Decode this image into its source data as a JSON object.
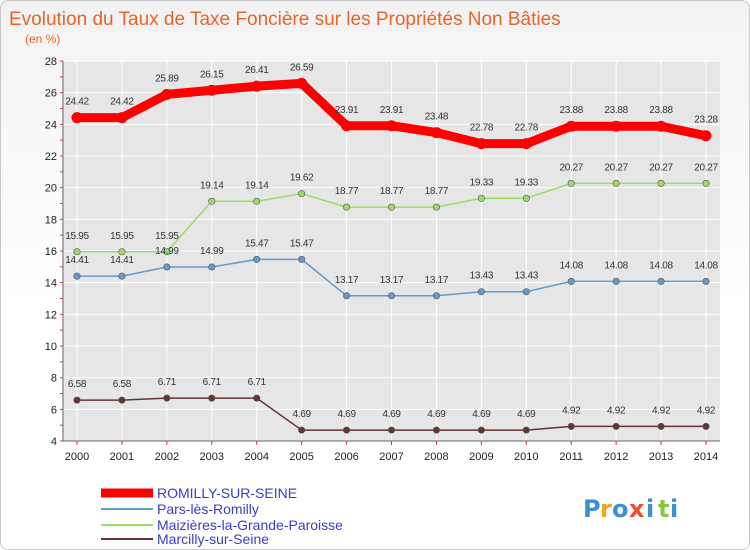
{
  "chart_data": {
    "type": "line",
    "title": "Evolution du Taux de Taxe Foncière sur les Propriétés Non Bâties",
    "subtitle": "(en %)",
    "x": [
      "2000",
      "2001",
      "2002",
      "2003",
      "2004",
      "2005",
      "2006",
      "2007",
      "2008",
      "2009",
      "2010",
      "2011",
      "2012",
      "2013",
      "2014"
    ],
    "ylim": [
      4,
      28
    ],
    "yticks": [
      "4",
      "6",
      "8",
      "10",
      "12",
      "14",
      "16",
      "18",
      "20",
      "22",
      "24",
      "26",
      "28"
    ],
    "grid": true,
    "legend_position": "bottom-left",
    "series": [
      {
        "name": "ROMILLY-SUR-SEINE",
        "color": "#ff0000",
        "values": [
          24.42,
          24.42,
          25.89,
          26.15,
          26.41,
          26.59,
          23.91,
          23.91,
          23.48,
          22.78,
          22.78,
          23.88,
          23.88,
          23.88,
          23.28
        ],
        "labels": [
          "24.42",
          "24.42",
          "25.89",
          "26.15",
          "26.41",
          "26.59",
          "23.91",
          "23.91",
          "23.48",
          "22.78",
          "22.78",
          "23.88",
          "23.88",
          "23.88",
          "23.28"
        ]
      },
      {
        "name": "Pars-lès-Romilly",
        "color": "#6699cc",
        "values": [
          14.41,
          14.41,
          14.99,
          14.99,
          15.47,
          15.47,
          13.17,
          13.17,
          13.17,
          13.43,
          13.43,
          14.08,
          14.08,
          14.08,
          14.08
        ],
        "labels": [
          "14.41",
          "14.41",
          "14.99",
          "14.99",
          "15.47",
          "15.47",
          "13.17",
          "13.17",
          "13.17",
          "13.43",
          "13.43",
          "14.08",
          "14.08",
          "14.08",
          "14.08"
        ]
      },
      {
        "name": "Maizières-la-Grande-Paroisse",
        "color": "#99dd66",
        "values": [
          15.95,
          15.95,
          15.95,
          19.14,
          19.14,
          19.62,
          18.77,
          18.77,
          18.77,
          19.33,
          19.33,
          20.27,
          20.27,
          20.27,
          20.27
        ],
        "labels": [
          "15.95",
          "15.95",
          "15.95",
          "19.14",
          "19.14",
          "19.62",
          "18.77",
          "18.77",
          "18.77",
          "19.33",
          "19.33",
          "20.27",
          "20.27",
          "20.27",
          "20.27"
        ]
      },
      {
        "name": "Marcilly-sur-Seine",
        "color": "#663333",
        "values": [
          6.58,
          6.58,
          6.71,
          6.71,
          6.71,
          4.69,
          4.69,
          4.69,
          4.69,
          4.69,
          4.69,
          4.92,
          4.92,
          4.92,
          4.92
        ],
        "labels": [
          "6.58",
          "6.58",
          "6.71",
          "6.71",
          "6.71",
          "4.69",
          "4.69",
          "4.69",
          "4.69",
          "4.69",
          "4.69",
          "4.92",
          "4.92",
          "4.92",
          "4.92"
        ]
      }
    ]
  },
  "logo": {
    "letters": [
      "P",
      "r",
      "o",
      "x",
      "i",
      "t",
      "i"
    ],
    "colors": [
      "#3b8fd4",
      "#f2a51d",
      "#3b8fd4",
      "#e84c2b",
      "#3b8fd4",
      "#8bc43f",
      "#3b8fd4"
    ]
  }
}
